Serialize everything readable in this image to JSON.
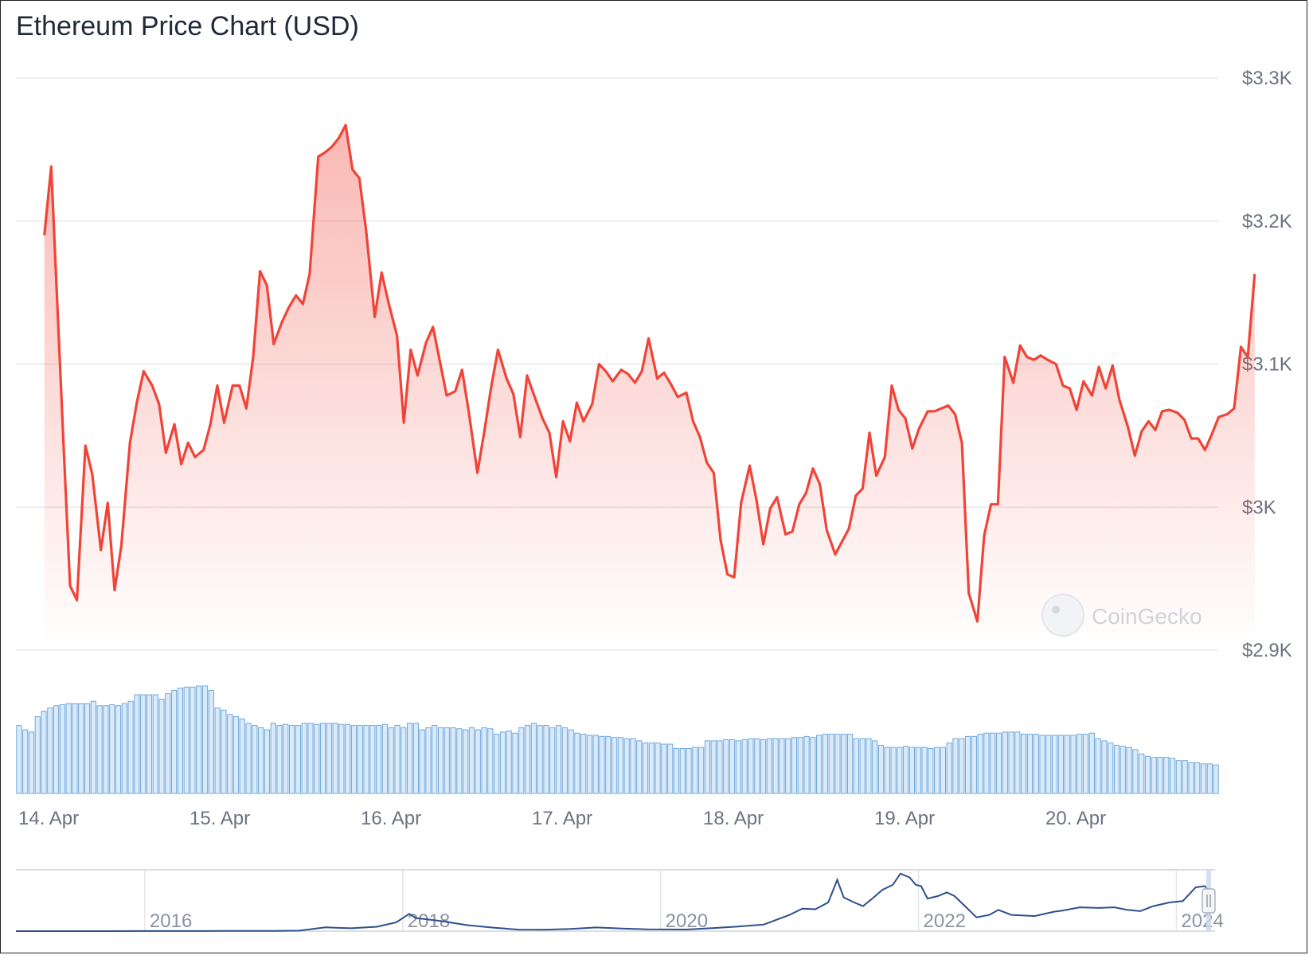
{
  "title": "Ethereum Price Chart (USD)",
  "watermark": "CoinGecko",
  "colors": {
    "price_line": "#f04438",
    "volume_fill": "#dbeaf8",
    "volume_stroke": "#6fa8dc",
    "navigator_line": "#2d4f8b",
    "grid": "#e6e8eb"
  },
  "chart_data": {
    "type": "line",
    "title": "Ethereum Price Chart (USD)",
    "y_ticks": [
      "$3.3K",
      "$3.2K",
      "$3.1K",
      "$3K",
      "$2.9K"
    ],
    "y_tick_values": [
      3300,
      3200,
      3100,
      3000,
      2900
    ],
    "ylim": [
      2900,
      3300
    ],
    "x_ticks": [
      "14. Apr",
      "15. Apr",
      "16. Apr",
      "17. Apr",
      "18. Apr",
      "19. Apr",
      "20. Apr"
    ],
    "x_tick_days": [
      0,
      1,
      2,
      3,
      4,
      5,
      6
    ],
    "xlim_days": [
      -0.02,
      6.9
    ],
    "grid": true,
    "series": [
      {
        "type": "line",
        "points": [
          [
            -0.02,
            3190
          ],
          [
            0.02,
            3238
          ],
          [
            0.09,
            3050
          ],
          [
            0.13,
            2945
          ],
          [
            0.17,
            2935
          ],
          [
            0.22,
            3043
          ],
          [
            0.26,
            3023
          ],
          [
            0.31,
            2970
          ],
          [
            0.35,
            3003
          ],
          [
            0.39,
            2942
          ],
          [
            0.43,
            2973
          ],
          [
            0.48,
            3045
          ],
          [
            0.52,
            3073
          ],
          [
            0.56,
            3095
          ],
          [
            0.61,
            3085
          ],
          [
            0.65,
            3072
          ],
          [
            0.69,
            3038
          ],
          [
            0.74,
            3058
          ],
          [
            0.78,
            3030
          ],
          [
            0.82,
            3045
          ],
          [
            0.86,
            3035
          ],
          [
            0.91,
            3040
          ],
          [
            0.95,
            3058
          ],
          [
            0.99,
            3085
          ],
          [
            1.03,
            3059
          ],
          [
            1.08,
            3085
          ],
          [
            1.12,
            3085
          ],
          [
            1.16,
            3069
          ],
          [
            1.2,
            3105
          ],
          [
            1.24,
            3165
          ],
          [
            1.28,
            3155
          ],
          [
            1.32,
            3114
          ],
          [
            1.37,
            3130
          ],
          [
            1.41,
            3140
          ],
          [
            1.45,
            3148
          ],
          [
            1.49,
            3142
          ],
          [
            1.53,
            3163
          ],
          [
            1.58,
            3245
          ],
          [
            1.62,
            3248
          ],
          [
            1.66,
            3252
          ],
          [
            1.7,
            3258
          ],
          [
            1.74,
            3267
          ],
          [
            1.78,
            3236
          ],
          [
            1.82,
            3230
          ],
          [
            1.86,
            3193
          ],
          [
            1.91,
            3133
          ],
          [
            1.95,
            3164
          ],
          [
            1.99,
            3143
          ],
          [
            2.04,
            3120
          ],
          [
            2.08,
            3059
          ],
          [
            2.12,
            3110
          ],
          [
            2.16,
            3092
          ],
          [
            2.21,
            3115
          ],
          [
            2.25,
            3126
          ],
          [
            2.29,
            3102
          ],
          [
            2.33,
            3078
          ],
          [
            2.38,
            3081
          ],
          [
            2.42,
            3096
          ],
          [
            2.46,
            3066
          ],
          [
            2.51,
            3024
          ],
          [
            2.55,
            3053
          ],
          [
            2.59,
            3084
          ],
          [
            2.63,
            3110
          ],
          [
            2.68,
            3090
          ],
          [
            2.72,
            3079
          ],
          [
            2.76,
            3049
          ],
          [
            2.8,
            3092
          ],
          [
            2.85,
            3075
          ],
          [
            2.89,
            3062
          ],
          [
            2.93,
            3052
          ],
          [
            2.97,
            3021
          ],
          [
            3.01,
            3060
          ],
          [
            3.05,
            3046
          ],
          [
            3.09,
            3073
          ],
          [
            3.13,
            3060
          ],
          [
            3.18,
            3072
          ],
          [
            3.22,
            3100
          ],
          [
            3.26,
            3095
          ],
          [
            3.3,
            3088
          ],
          [
            3.35,
            3096
          ],
          [
            3.39,
            3093
          ],
          [
            3.43,
            3087
          ],
          [
            3.47,
            3095
          ],
          [
            3.51,
            3118
          ],
          [
            3.56,
            3090
          ],
          [
            3.6,
            3094
          ],
          [
            3.64,
            3086
          ],
          [
            3.68,
            3077
          ],
          [
            3.73,
            3080
          ],
          [
            3.77,
            3060
          ],
          [
            3.81,
            3049
          ],
          [
            3.85,
            3031
          ],
          [
            3.89,
            3024
          ],
          [
            3.93,
            2977
          ],
          [
            3.97,
            2953
          ],
          [
            4.01,
            2951
          ],
          [
            4.05,
            3003
          ],
          [
            4.1,
            3029
          ],
          [
            4.14,
            3005
          ],
          [
            4.18,
            2974
          ],
          [
            4.22,
            2999
          ],
          [
            4.26,
            3007
          ],
          [
            4.31,
            2981
          ],
          [
            4.35,
            2983
          ],
          [
            4.39,
            3002
          ],
          [
            4.43,
            3010
          ],
          [
            4.47,
            3027
          ],
          [
            4.51,
            3016
          ],
          [
            4.55,
            2984
          ],
          [
            4.6,
            2967
          ],
          [
            4.64,
            2976
          ],
          [
            4.68,
            2985
          ],
          [
            4.72,
            3008
          ],
          [
            4.76,
            3013
          ],
          [
            4.8,
            3052
          ],
          [
            4.84,
            3022
          ],
          [
            4.89,
            3035
          ],
          [
            4.93,
            3085
          ],
          [
            4.97,
            3068
          ],
          [
            5.01,
            3062
          ],
          [
            5.05,
            3041
          ],
          [
            5.09,
            3055
          ],
          [
            5.14,
            3067
          ],
          [
            5.18,
            3067
          ],
          [
            5.22,
            3069
          ],
          [
            5.26,
            3071
          ],
          [
            5.3,
            3065
          ],
          [
            5.34,
            3045
          ],
          [
            5.38,
            2940
          ],
          [
            5.43,
            2920
          ],
          [
            5.47,
            2980
          ],
          [
            5.51,
            3002
          ],
          [
            5.55,
            3002
          ],
          [
            5.59,
            3105
          ],
          [
            5.64,
            3087
          ],
          [
            5.68,
            3113
          ],
          [
            5.72,
            3105
          ],
          [
            5.76,
            3103
          ],
          [
            5.8,
            3106
          ],
          [
            5.84,
            3103
          ],
          [
            5.89,
            3100
          ],
          [
            5.93,
            3085
          ],
          [
            5.97,
            3083
          ],
          [
            6.01,
            3068
          ],
          [
            6.05,
            3088
          ],
          [
            6.1,
            3078
          ],
          [
            6.14,
            3098
          ],
          [
            6.18,
            3083
          ],
          [
            6.22,
            3099
          ],
          [
            6.26,
            3075
          ],
          [
            6.31,
            3056
          ],
          [
            6.35,
            3036
          ],
          [
            6.39,
            3053
          ],
          [
            6.43,
            3060
          ],
          [
            6.47,
            3054
          ],
          [
            6.51,
            3067
          ],
          [
            6.55,
            3068
          ],
          [
            6.6,
            3066
          ],
          [
            6.64,
            3061
          ],
          [
            6.68,
            3048
          ],
          [
            6.72,
            3048
          ],
          [
            6.76,
            3040
          ],
          [
            6.8,
            3051
          ],
          [
            6.84,
            3063
          ],
          [
            6.89,
            3065
          ],
          [
            6.93,
            3069
          ],
          [
            6.97,
            3112
          ],
          [
            7.01,
            3105
          ],
          [
            7.05,
            3163
          ]
        ]
      },
      {
        "type": "bar",
        "name": "volume",
        "values": [
          62,
          58,
          56,
          70,
          75,
          78,
          80,
          81,
          82,
          82,
          82,
          82,
          84,
          80,
          80,
          81,
          80,
          82,
          84,
          90,
          90,
          90,
          90,
          86,
          91,
          94,
          96,
          97,
          97,
          98,
          98,
          94,
          78,
          76,
          72,
          70,
          68,
          64,
          62,
          60,
          58,
          64,
          62,
          63,
          62,
          62,
          64,
          64,
          63,
          64,
          64,
          64,
          63,
          63,
          62,
          62,
          62,
          62,
          62,
          63,
          60,
          62,
          60,
          64,
          64,
          58,
          60,
          62,
          60,
          60,
          60,
          59,
          58,
          60,
          58,
          60,
          59,
          54,
          56,
          57,
          55,
          60,
          62,
          64,
          62,
          62,
          60,
          62,
          60,
          58,
          55,
          54,
          53,
          53,
          52,
          52,
          51,
          51,
          50,
          50,
          48,
          46,
          46,
          46,
          45,
          45,
          41,
          41,
          41,
          42,
          42,
          48,
          48,
          48,
          49,
          49,
          48,
          49,
          50,
          50,
          49,
          50,
          50,
          50,
          50,
          51,
          51,
          52,
          51,
          53,
          54,
          54,
          54,
          54,
          54,
          50,
          50,
          50,
          48,
          44,
          42,
          42,
          42,
          43,
          42,
          42,
          42,
          41,
          42,
          42,
          46,
          50,
          50,
          52,
          52,
          54,
          55,
          55,
          55,
          56,
          56,
          56,
          54,
          54,
          54,
          53,
          53,
          53,
          53,
          53,
          53,
          54,
          54,
          55,
          50,
          48,
          46,
          44,
          43,
          42,
          40,
          36,
          34,
          33,
          33,
          33,
          32,
          30,
          30,
          28,
          28,
          27,
          27,
          26
        ]
      }
    ]
  },
  "navigator": {
    "x_labels": [
      "2016",
      "2018",
      "2020",
      "2022",
      "2024"
    ],
    "x_label_years": [
      2016,
      2018,
      2020,
      2022,
      2024
    ],
    "xlim_years": [
      2015.0,
      2024.3
    ],
    "ylim": [
      0,
      4900
    ],
    "points": [
      [
        2015.0,
        2
      ],
      [
        2015.6,
        1
      ],
      [
        2016.0,
        8
      ],
      [
        2016.6,
        12
      ],
      [
        2017.0,
        10
      ],
      [
        2017.2,
        40
      ],
      [
        2017.4,
        300
      ],
      [
        2017.5,
        260
      ],
      [
        2017.6,
        230
      ],
      [
        2017.8,
        350
      ],
      [
        2017.95,
        700
      ],
      [
        2018.05,
        1380
      ],
      [
        2018.1,
        1050
      ],
      [
        2018.3,
        800
      ],
      [
        2018.5,
        480
      ],
      [
        2018.7,
        280
      ],
      [
        2018.9,
        120
      ],
      [
        2019.1,
        110
      ],
      [
        2019.3,
        170
      ],
      [
        2019.5,
        290
      ],
      [
        2019.7,
        210
      ],
      [
        2019.9,
        145
      ],
      [
        2020.2,
        130
      ],
      [
        2020.4,
        240
      ],
      [
        2020.6,
        360
      ],
      [
        2020.8,
        520
      ],
      [
        2021.0,
        1300
      ],
      [
        2021.1,
        1800
      ],
      [
        2021.2,
        1750
      ],
      [
        2021.3,
        2300
      ],
      [
        2021.37,
        4100
      ],
      [
        2021.42,
        2700
      ],
      [
        2021.5,
        2300
      ],
      [
        2021.57,
        2000
      ],
      [
        2021.63,
        2500
      ],
      [
        2021.72,
        3300
      ],
      [
        2021.8,
        3700
      ],
      [
        2021.86,
        4600
      ],
      [
        2021.93,
        4300
      ],
      [
        2021.98,
        3700
      ],
      [
        2022.02,
        3600
      ],
      [
        2022.07,
        2600
      ],
      [
        2022.15,
        2800
      ],
      [
        2022.22,
        3100
      ],
      [
        2022.28,
        2800
      ],
      [
        2022.37,
        1900
      ],
      [
        2022.45,
        1100
      ],
      [
        2022.55,
        1300
      ],
      [
        2022.62,
        1700
      ],
      [
        2022.72,
        1300
      ],
      [
        2022.82,
        1250
      ],
      [
        2022.9,
        1200
      ],
      [
        2023.05,
        1550
      ],
      [
        2023.12,
        1650
      ],
      [
        2023.25,
        1900
      ],
      [
        2023.4,
        1850
      ],
      [
        2023.52,
        1900
      ],
      [
        2023.62,
        1700
      ],
      [
        2023.72,
        1600
      ],
      [
        2023.82,
        2000
      ],
      [
        2023.95,
        2300
      ],
      [
        2024.05,
        2400
      ],
      [
        2024.15,
        3500
      ],
      [
        2024.22,
        3600
      ],
      [
        2024.26,
        3200
      ]
    ]
  }
}
